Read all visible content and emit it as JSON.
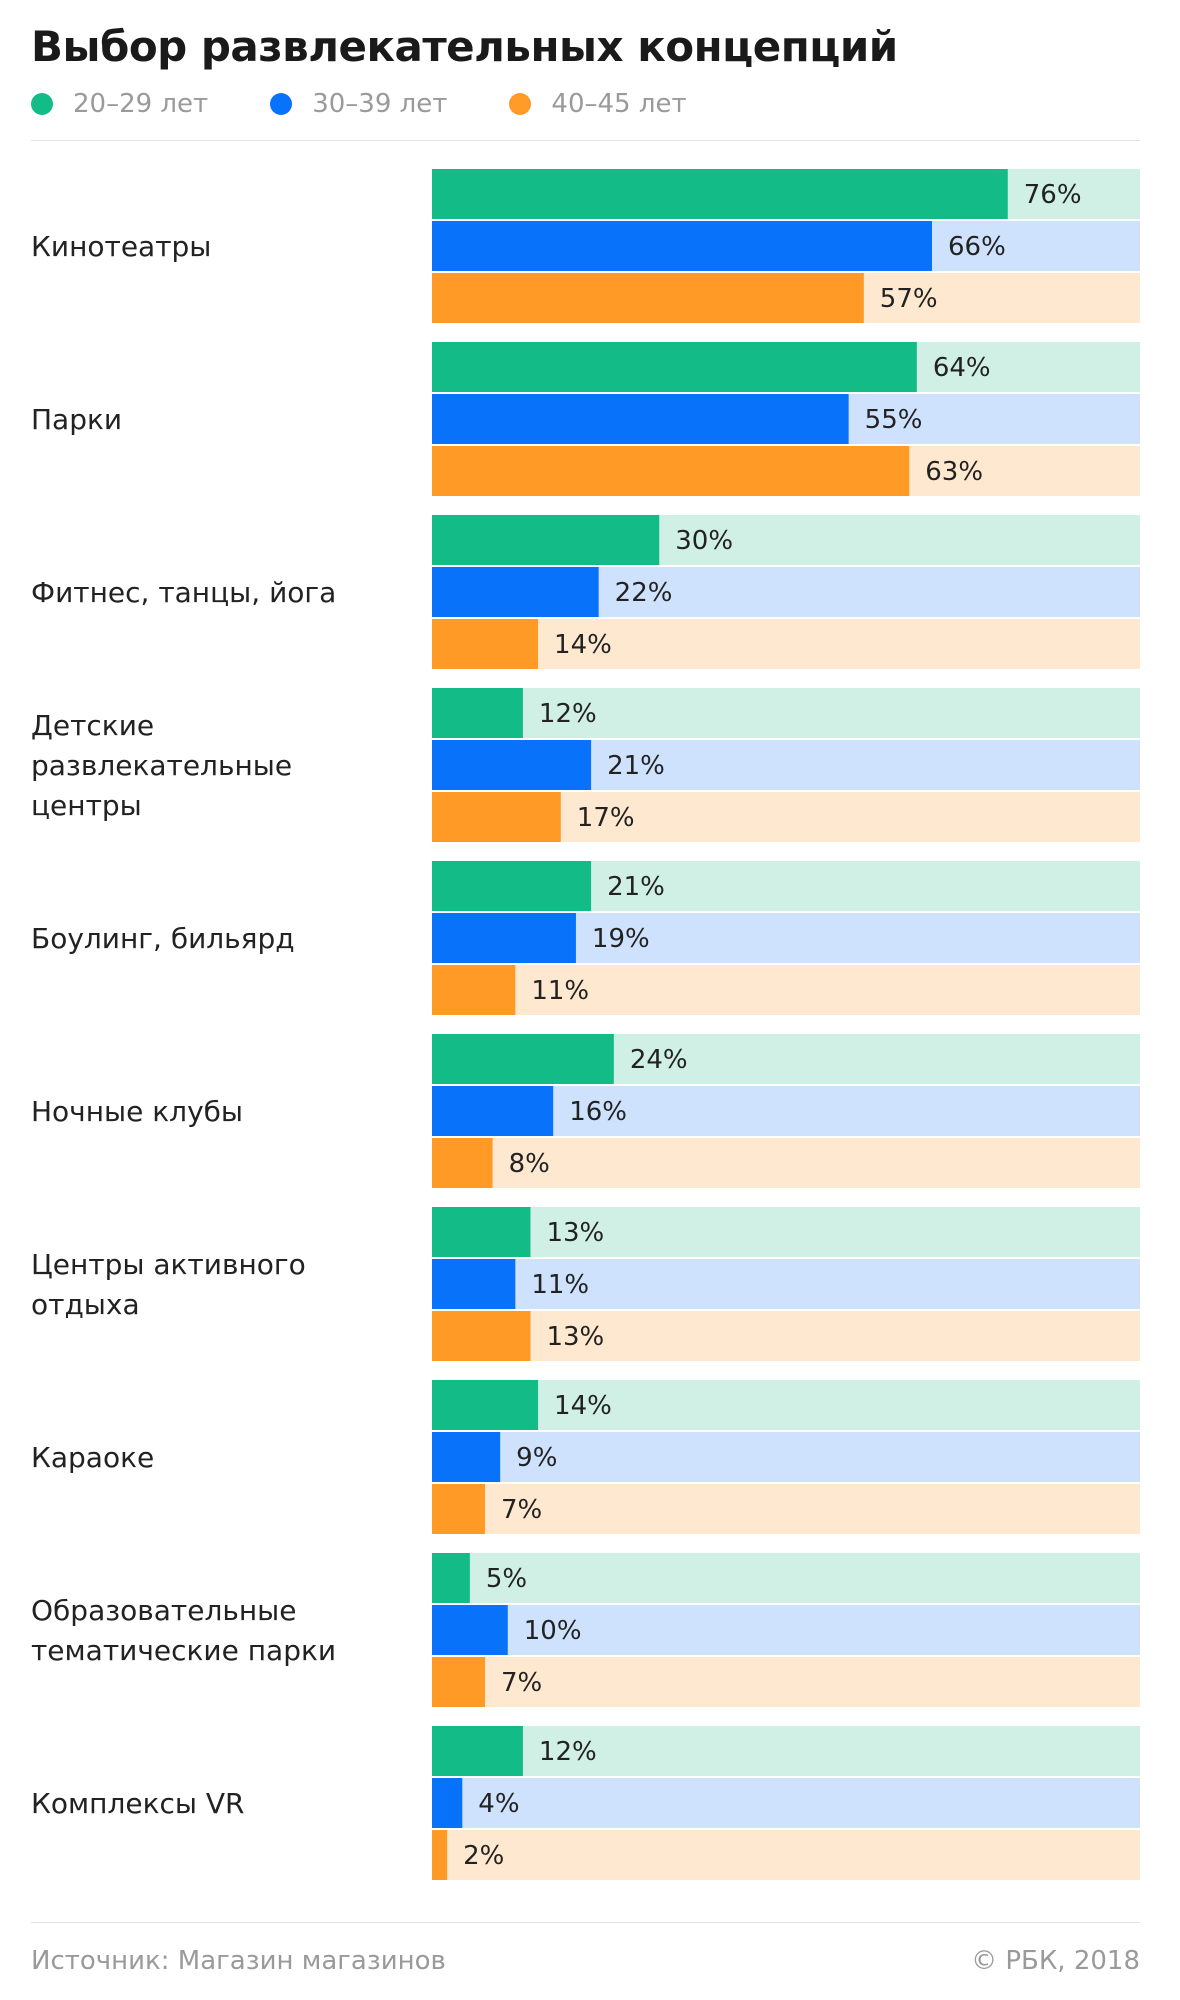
{
  "title": "Выбор развлекательных концепций",
  "footer": {
    "source": "Источник: Магазин магазинов",
    "copyright": "© РБК, 2018"
  },
  "colors": {
    "series": [
      "#13bb86",
      "#0972fa",
      "#ff9a26"
    ],
    "tracks": [
      "#d0f0e5",
      "#cfe2fd",
      "#ffe8d0"
    ]
  },
  "chart_data": {
    "type": "bar",
    "orientation": "horizontal",
    "unit": "%",
    "xlim": [
      0,
      100
    ],
    "grid": false,
    "legend_position": "top",
    "categories": [
      [
        "Кинотеатры"
      ],
      [
        "Парки"
      ],
      [
        "Фитнес, танцы, йога"
      ],
      [
        "Детские",
        "развлекательные",
        "центры"
      ],
      [
        "Боулинг, бильярд"
      ],
      [
        "Ночные клубы"
      ],
      [
        "Центры активного",
        "отдыха"
      ],
      [
        "Караоке"
      ],
      [
        "Образовательные",
        "тематические парки"
      ],
      [
        "Комплексы VR"
      ]
    ],
    "series": [
      {
        "name": "20–29 лет",
        "values": [
          76,
          64,
          30,
          12,
          21,
          24,
          13,
          14,
          5,
          12
        ]
      },
      {
        "name": "30–39 лет",
        "values": [
          66,
          55,
          22,
          21,
          19,
          16,
          11,
          9,
          10,
          4
        ]
      },
      {
        "name": "40–45 лет",
        "values": [
          57,
          63,
          14,
          17,
          11,
          8,
          13,
          7,
          7,
          2
        ]
      }
    ]
  }
}
